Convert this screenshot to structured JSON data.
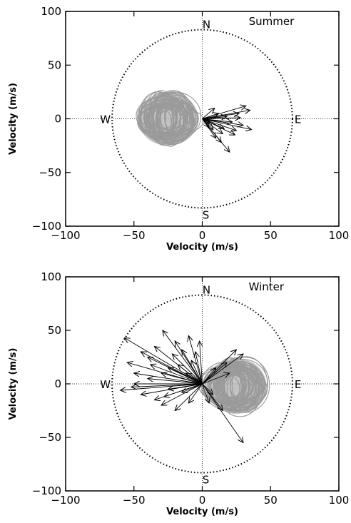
{
  "chart_data": [
    {
      "type": "scatter",
      "title": "Summer",
      "xlabel": "Velocity (m/s)",
      "ylabel": "Velocity (m/s)",
      "xlim": [
        -100,
        100
      ],
      "ylim": [
        -100,
        100
      ],
      "xticks": [
        -100,
        -50,
        0,
        50,
        100
      ],
      "yticks": [
        -100,
        -50,
        0,
        50,
        100
      ],
      "compass": {
        "north": "N",
        "south": "S",
        "east": "E",
        "west": "W"
      },
      "reference_circle": {
        "center": [
          0,
          0
        ],
        "rx": 66,
        "ry": 83,
        "style": "dotted"
      },
      "cloud": {
        "center": [
          -25,
          0
        ],
        "radius_x": 22,
        "radius_y": 25,
        "color": "#9a9a9a"
      },
      "vectors": [
        [
          35,
          8
        ],
        [
          32,
          12
        ],
        [
          27,
          5
        ],
        [
          36,
          -10
        ],
        [
          24,
          -15
        ],
        [
          14,
          -22
        ],
        [
          20,
          -31
        ],
        [
          22,
          -3
        ],
        [
          10,
          -18
        ],
        [
          30,
          -6
        ],
        [
          12,
          5
        ],
        [
          8,
          -10
        ],
        [
          16,
          -9
        ],
        [
          25,
          -11
        ],
        [
          5,
          -8
        ],
        [
          18,
          2
        ],
        [
          9,
          10
        ],
        [
          6,
          -4
        ],
        [
          28,
          1
        ],
        [
          15,
          -14
        ]
      ]
    },
    {
      "type": "scatter",
      "title": "Winter",
      "xlabel": "Velocity (m/s)",
      "ylabel": "Velocity (m/s)",
      "xlim": [
        -100,
        100
      ],
      "ylim": [
        -100,
        100
      ],
      "xticks": [
        -100,
        -50,
        0,
        50,
        100
      ],
      "yticks": [
        -100,
        -50,
        0,
        50,
        100
      ],
      "compass": {
        "north": "N",
        "south": "S",
        "east": "E",
        "west": "W"
      },
      "reference_circle": {
        "center": [
          0,
          0
        ],
        "rx": 66,
        "ry": 83,
        "style": "dotted"
      },
      "cloud": {
        "center": [
          25,
          -2
        ],
        "radius_x": 22,
        "radius_y": 26,
        "color": "#9a9a9a"
      },
      "vectors": [
        [
          -57,
          43
        ],
        [
          -29,
          50
        ],
        [
          -60,
          -6
        ],
        [
          -55,
          20
        ],
        [
          -40,
          25
        ],
        [
          -50,
          10
        ],
        [
          -45,
          -10
        ],
        [
          -30,
          -20
        ],
        [
          -35,
          35
        ],
        [
          -20,
          40
        ],
        [
          -15,
          32
        ],
        [
          -10,
          45
        ],
        [
          -25,
          15
        ],
        [
          -40,
          5
        ],
        [
          -30,
          10
        ],
        [
          -18,
          18
        ],
        [
          -12,
          10
        ],
        [
          -50,
          0
        ],
        [
          -25,
          -5
        ],
        [
          -8,
          22
        ],
        [
          -5,
          30
        ],
        [
          -35,
          -15
        ],
        [
          -20,
          -25
        ],
        [
          -10,
          -18
        ],
        [
          -2,
          40
        ],
        [
          25,
          32
        ],
        [
          30,
          28
        ],
        [
          18,
          20
        ],
        [
          30,
          -55
        ],
        [
          15,
          -25
        ],
        [
          5,
          -18
        ],
        [
          -45,
          30
        ],
        [
          -38,
          18
        ],
        [
          -22,
          28
        ],
        [
          -28,
          -12
        ],
        [
          10,
          15
        ],
        [
          -15,
          -8
        ],
        [
          -52,
          -3
        ],
        [
          8,
          -10
        ],
        [
          20,
          10
        ]
      ]
    }
  ]
}
